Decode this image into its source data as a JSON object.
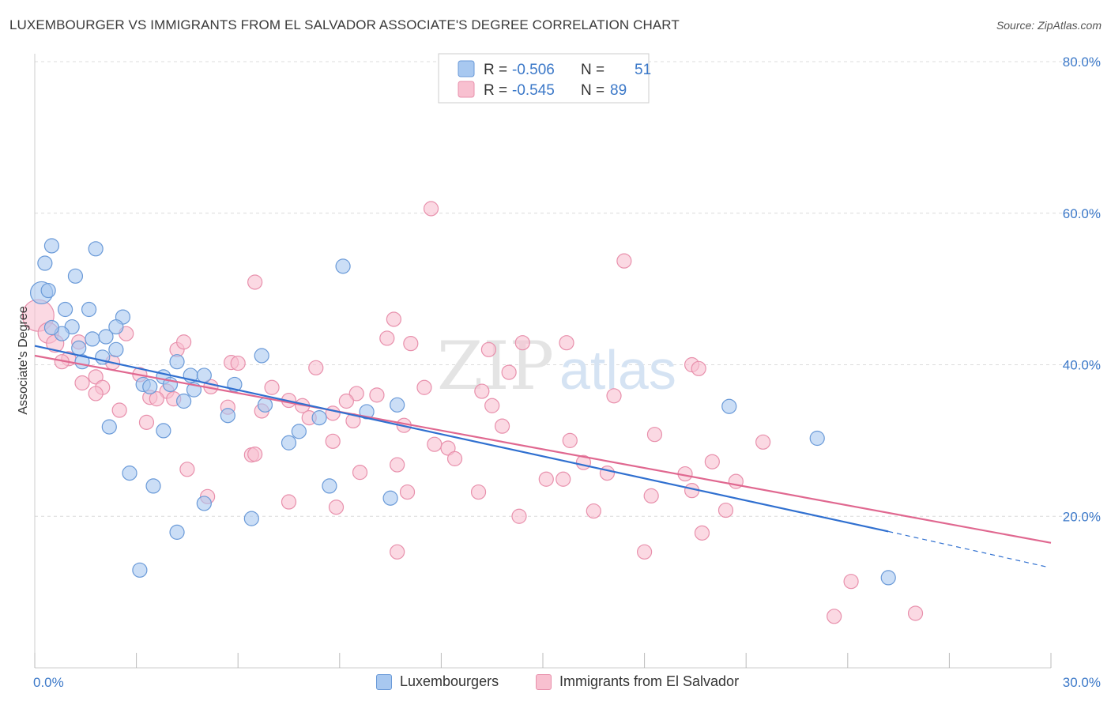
{
  "title": "LUXEMBOURGER VS IMMIGRANTS FROM EL SALVADOR ASSOCIATE'S DEGREE CORRELATION CHART",
  "source": "Source: ZipAtlas.com",
  "watermark": {
    "zip": "ZIP",
    "atlas": "atlas"
  },
  "colors": {
    "blue_fill": "#a8c8f0",
    "blue_stroke": "#6a9ad8",
    "blue_line": "#3070d0",
    "pink_fill": "#f8c0d0",
    "pink_stroke": "#e890ac",
    "pink_line": "#e06890",
    "tick_text": "#3b78c8",
    "grid": "#dddddd"
  },
  "legend": {
    "row1": {
      "r_label": "R =",
      "r_value": "-0.506",
      "n_label": "N =",
      "n_value": "51"
    },
    "row2": {
      "r_label": "R =",
      "r_value": "-0.545",
      "n_label": "N =",
      "n_value": "89"
    }
  },
  "bottom_legend": {
    "series1": "Luxembourgers",
    "series2": "Immigrants from El Salvador"
  },
  "chart_data": {
    "type": "scatter",
    "title": "LUXEMBOURGER VS IMMIGRANTS FROM EL SALVADOR ASSOCIATE'S DEGREE CORRELATION CHART",
    "xlabel": "",
    "ylabel": "Associate's Degree",
    "xlim": [
      0,
      30
    ],
    "ylim": [
      0,
      80
    ],
    "x_tick_labels": [
      "0.0%",
      "30.0%"
    ],
    "y_tick_labels": [
      "20.0%",
      "40.0%",
      "60.0%",
      "80.0%"
    ],
    "y_ticks": [
      20,
      40,
      60,
      80
    ],
    "grid": true,
    "legend_placement": "top-center",
    "series": [
      {
        "name": "Luxembourgers",
        "color": "#a8c8f0",
        "r": -0.506,
        "n": 51,
        "trend": {
          "x0": 0,
          "y0": 42.5,
          "x1": 25.2,
          "y1": 18.0,
          "dash_to_x": 29.9,
          "dash_to_y": 13.3
        },
        "points": [
          [
            0.2,
            49.5,
            14
          ],
          [
            0.5,
            55.7,
            9
          ],
          [
            0.3,
            53.4,
            9
          ],
          [
            1.2,
            51.7,
            9
          ],
          [
            1.8,
            55.3,
            9
          ],
          [
            0.9,
            47.3,
            9
          ],
          [
            1.6,
            47.3,
            9
          ],
          [
            0.4,
            49.8,
            9
          ],
          [
            1.1,
            45.0,
            9
          ],
          [
            2.6,
            46.3,
            9
          ],
          [
            2.4,
            45.0,
            9
          ],
          [
            0.8,
            44.1,
            9
          ],
          [
            1.7,
            43.4,
            9
          ],
          [
            2.1,
            43.7,
            9
          ],
          [
            1.3,
            42.2,
            9
          ],
          [
            2.0,
            41.0,
            9
          ],
          [
            1.4,
            40.4,
            9
          ],
          [
            4.2,
            40.4,
            9
          ],
          [
            3.8,
            38.4,
            9
          ],
          [
            4.6,
            38.6,
            9
          ],
          [
            5.0,
            38.6,
            9
          ],
          [
            3.2,
            37.4,
            9
          ],
          [
            3.4,
            37.1,
            9
          ],
          [
            4.0,
            37.4,
            9
          ],
          [
            5.9,
            37.4,
            9
          ],
          [
            4.7,
            36.7,
            9
          ],
          [
            4.4,
            35.2,
            9
          ],
          [
            6.7,
            41.2,
            9
          ],
          [
            9.1,
            53.0,
            9
          ],
          [
            6.8,
            34.7,
            9
          ],
          [
            5.7,
            33.3,
            9
          ],
          [
            9.8,
            33.8,
            9
          ],
          [
            10.7,
            34.7,
            9
          ],
          [
            8.4,
            33.0,
            9
          ],
          [
            2.2,
            31.8,
            9
          ],
          [
            3.8,
            31.3,
            9
          ],
          [
            7.8,
            31.2,
            9
          ],
          [
            7.5,
            29.7,
            9
          ],
          [
            2.8,
            25.7,
            9
          ],
          [
            3.5,
            24.0,
            9
          ],
          [
            8.7,
            24.0,
            9
          ],
          [
            10.5,
            22.4,
            9
          ],
          [
            5.0,
            21.7,
            9
          ],
          [
            6.4,
            19.7,
            9
          ],
          [
            4.2,
            17.9,
            9
          ],
          [
            3.1,
            12.9,
            9
          ],
          [
            20.5,
            34.5,
            9
          ],
          [
            23.1,
            30.3,
            9
          ],
          [
            25.2,
            11.9,
            9
          ],
          [
            0.5,
            44.9,
            9
          ],
          [
            2.4,
            42.0,
            9
          ]
        ]
      },
      {
        "name": "Immigrants from El Salvador",
        "color": "#f8c0d0",
        "r": -0.545,
        "n": 89,
        "trend": {
          "x0": 0,
          "y0": 41.2,
          "x1": 30.0,
          "y1": 16.5
        },
        "points": [
          [
            0.1,
            46.5,
            20
          ],
          [
            0.4,
            44.2,
            13
          ],
          [
            0.6,
            42.8,
            11
          ],
          [
            1.3,
            43.0,
            9
          ],
          [
            1.0,
            40.8,
            9
          ],
          [
            0.8,
            40.4,
            9
          ],
          [
            1.8,
            38.4,
            9
          ],
          [
            2.3,
            40.3,
            9
          ],
          [
            2.7,
            44.1,
            9
          ],
          [
            3.1,
            38.7,
            9
          ],
          [
            2.0,
            37.0,
            9
          ],
          [
            1.4,
            37.6,
            9
          ],
          [
            1.8,
            36.2,
            9
          ],
          [
            3.4,
            35.7,
            9
          ],
          [
            3.9,
            36.5,
            9
          ],
          [
            4.1,
            35.5,
            9
          ],
          [
            2.5,
            34.0,
            9
          ],
          [
            3.3,
            32.4,
            9
          ],
          [
            4.2,
            42.0,
            9
          ],
          [
            4.4,
            43.0,
            9
          ],
          [
            5.2,
            37.1,
            9
          ],
          [
            5.7,
            34.4,
            9
          ],
          [
            5.8,
            40.3,
            9
          ],
          [
            6.7,
            33.9,
            9
          ],
          [
            6.4,
            28.1,
            9
          ],
          [
            7.0,
            37.0,
            9
          ],
          [
            7.5,
            35.3,
            9
          ],
          [
            7.9,
            34.6,
            9
          ],
          [
            6.5,
            28.2,
            9
          ],
          [
            4.5,
            26.2,
            9
          ],
          [
            5.1,
            22.6,
            9
          ],
          [
            6.5,
            50.9,
            9
          ],
          [
            8.8,
            33.6,
            9
          ],
          [
            8.1,
            33.0,
            9
          ],
          [
            8.3,
            39.6,
            9
          ],
          [
            9.5,
            36.2,
            9
          ],
          [
            9.2,
            35.2,
            9
          ],
          [
            9.4,
            32.6,
            9
          ],
          [
            10.1,
            36.0,
            9
          ],
          [
            10.6,
            46.0,
            9
          ],
          [
            10.4,
            43.5,
            9
          ],
          [
            8.8,
            29.9,
            9
          ],
          [
            11.1,
            42.8,
            9
          ],
          [
            11.5,
            37.0,
            9
          ],
          [
            11.8,
            29.5,
            9
          ],
          [
            10.9,
            32.0,
            9
          ],
          [
            12.2,
            29.0,
            9
          ],
          [
            12.4,
            27.6,
            9
          ],
          [
            13.2,
            36.5,
            9
          ],
          [
            13.5,
            34.6,
            9
          ],
          [
            13.8,
            31.9,
            9
          ],
          [
            13.4,
            42.0,
            9
          ],
          [
            14.0,
            39.0,
            9
          ],
          [
            14.4,
            42.9,
            9
          ],
          [
            11.7,
            60.6,
            9
          ],
          [
            17.4,
            53.7,
            9
          ],
          [
            10.7,
            26.8,
            9
          ],
          [
            8.9,
            21.2,
            9
          ],
          [
            7.5,
            21.9,
            9
          ],
          [
            9.6,
            25.8,
            9
          ],
          [
            11.0,
            23.2,
            9
          ],
          [
            13.1,
            23.2,
            9
          ],
          [
            14.3,
            20.0,
            9
          ],
          [
            15.1,
            24.9,
            9
          ],
          [
            15.6,
            24.9,
            9
          ],
          [
            15.8,
            30.0,
            9
          ],
          [
            15.7,
            42.9,
            9
          ],
          [
            16.2,
            27.1,
            9
          ],
          [
            16.5,
            20.7,
            9
          ],
          [
            16.9,
            25.7,
            9
          ],
          [
            17.1,
            35.9,
            9
          ],
          [
            18.3,
            30.8,
            9
          ],
          [
            18.2,
            22.7,
            9
          ],
          [
            19.2,
            25.6,
            9
          ],
          [
            19.4,
            23.4,
            9
          ],
          [
            19.7,
            17.8,
            9
          ],
          [
            19.4,
            40.0,
            9
          ],
          [
            19.6,
            39.5,
            9
          ],
          [
            20.0,
            27.2,
            9
          ],
          [
            20.7,
            24.6,
            9
          ],
          [
            20.4,
            20.8,
            9
          ],
          [
            21.5,
            29.8,
            9
          ],
          [
            18.0,
            15.3,
            9
          ],
          [
            10.7,
            15.3,
            9
          ],
          [
            24.1,
            11.4,
            9
          ],
          [
            23.6,
            6.8,
            9
          ],
          [
            26.0,
            7.2,
            9
          ],
          [
            6.0,
            40.2,
            9
          ],
          [
            3.6,
            35.5,
            9
          ]
        ]
      }
    ]
  }
}
